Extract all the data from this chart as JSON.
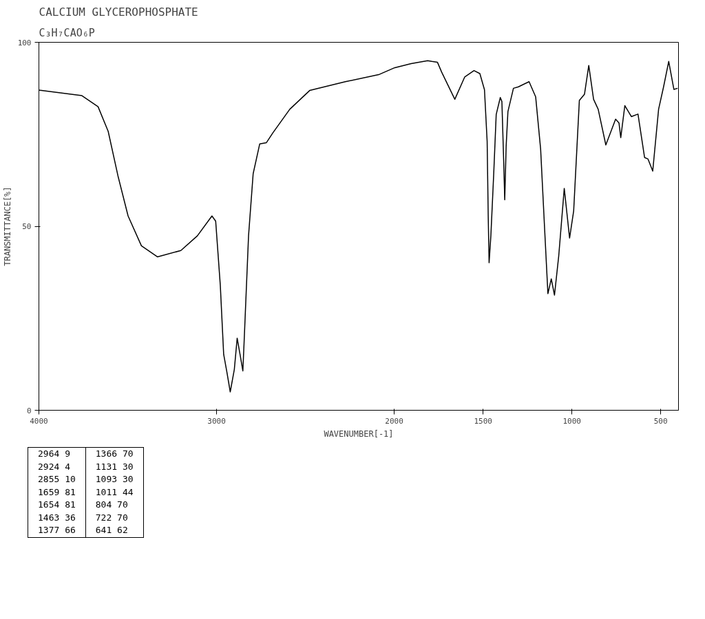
{
  "chart_data": {
    "type": "line",
    "title": "CALCIUM GLYCEROPHOSPHATE",
    "subtitle": "C₃H₇CAO₆P",
    "xlabel": "WAVENUMBER[-1]",
    "ylabel": "TRANSMITTANCE[%]",
    "xlim": [
      4000,
      400
    ],
    "xticks": [
      4000,
      3000,
      2000,
      1500,
      1000,
      500
    ],
    "ylim": [
      0,
      100
    ],
    "yticks": [
      0,
      50,
      100
    ],
    "grid": false,
    "marker": "none",
    "line_style": "solid",
    "series": [
      {
        "color": "#000000",
        "x": [
          4000,
          3758,
          3667,
          3610,
          3555,
          3498,
          3423,
          3333,
          3201,
          3108,
          3026,
          3005,
          2979,
          2960,
          2942,
          2923,
          2900,
          2884,
          2868,
          2852,
          2845,
          2820,
          2794,
          2757,
          2720,
          2683,
          2588,
          2476,
          2275,
          2088,
          1997,
          1905,
          1812,
          1788,
          1757,
          1733,
          1659,
          1603,
          1551,
          1518,
          1492,
          1477,
          1471,
          1466,
          1456,
          1440,
          1426,
          1403,
          1394,
          1384,
          1378,
          1370,
          1360,
          1329,
          1301,
          1241,
          1204,
          1176,
          1153,
          1135,
          1116,
          1098,
          1074,
          1043,
          1013,
          990,
          958,
          929,
          905,
          878,
          852,
          809,
          754,
          735,
          725,
          702,
          665,
          628,
          591,
          572,
          545,
          512,
          484,
          455,
          426,
          405
        ],
        "values": [
          87.0,
          85.5,
          82.5,
          75.8,
          63.7,
          52.8,
          44.7,
          41.7,
          43.4,
          47.4,
          52.8,
          51.4,
          34.0,
          15.2,
          10.4,
          5.0,
          11.1,
          19.6,
          15.2,
          10.7,
          18.5,
          47.4,
          64.3,
          72.4,
          72.7,
          75.4,
          81.8,
          86.9,
          89.3,
          91.2,
          93.1,
          94.2,
          95.0,
          94.8,
          94.6,
          91.9,
          84.5,
          90.6,
          92.3,
          91.5,
          87.1,
          73.1,
          52.9,
          40.1,
          47.5,
          64.3,
          80.4,
          85.0,
          83.9,
          67.8,
          57.2,
          71.8,
          81.2,
          87.5,
          87.9,
          89.3,
          85.2,
          71.0,
          48.8,
          31.7,
          35.7,
          31.3,
          42.0,
          60.3,
          46.8,
          54.2,
          84.2,
          85.9,
          93.7,
          84.5,
          81.8,
          72.1,
          79.1,
          78.1,
          74.1,
          82.8,
          79.8,
          80.5,
          68.7,
          68.3,
          65.0,
          81.8,
          87.9,
          94.8,
          87.2,
          87.5
        ]
      }
    ],
    "annotations": [
      "2964 9",
      "2924 4",
      "2855 10",
      "1659 81",
      "1654 81",
      "1463 36",
      "1377 66",
      "1366 70",
      "1131 30",
      "1093 30",
      "1011 44",
      "804 70",
      "722 70",
      "641 62"
    ]
  }
}
